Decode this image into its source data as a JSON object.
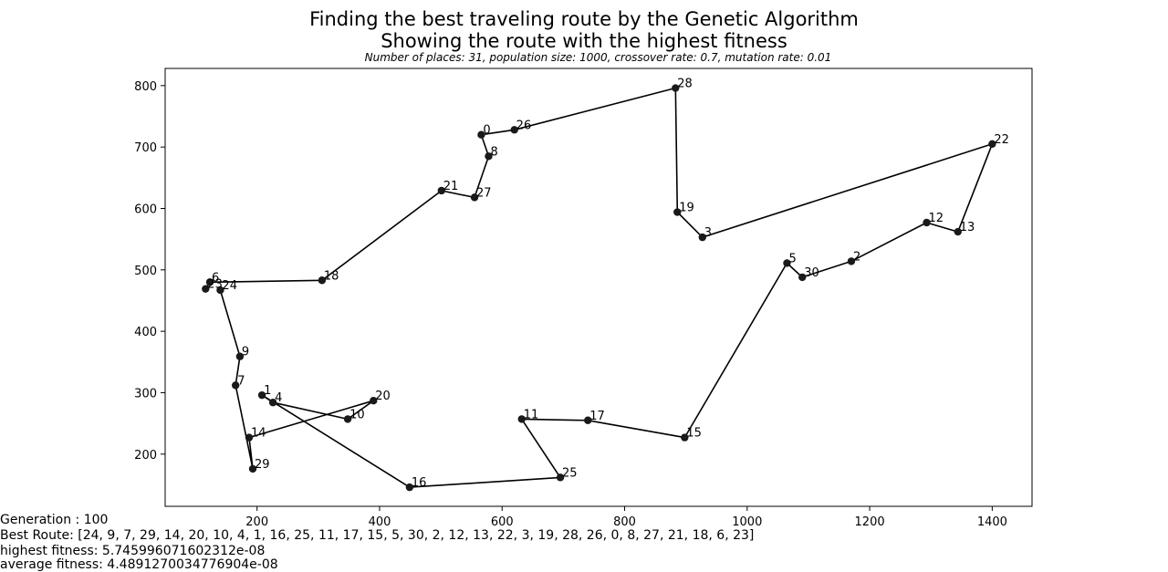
{
  "title": {
    "line1": "Finding the best traveling route by the Genetic Algorithm",
    "line2": "Showing the route with the highest fitness",
    "subtitle": "Number of places: 31, population size: 1000, crossover rate: 0.7, mutation rate: 0.01"
  },
  "footer": {
    "generation": "Generation : 100",
    "best_route": "Best Route: [24, 9, 7, 29, 14, 20, 10, 4, 1, 16, 25, 11, 17, 15, 5, 30, 2, 12, 13, 22, 3, 19, 28, 26, 0, 8, 27, 21, 18, 6, 23]",
    "highest_fitness": "highest fitness: 5.745996071602312e-08",
    "average_fitness": "average fitness: 4.4891270034776904e-08"
  },
  "chart_data": {
    "type": "line",
    "xlim": [
      50,
      1465
    ],
    "ylim": [
      115,
      828
    ],
    "xticks": [
      200,
      400,
      600,
      800,
      1000,
      1200,
      1400
    ],
    "yticks": [
      200,
      300,
      400,
      500,
      600,
      700,
      800
    ],
    "grid": false,
    "line_color": "#000000",
    "marker_color": "#1a1a1a",
    "points": [
      {
        "label": "0",
        "x": 566,
        "y": 720
      },
      {
        "label": "1",
        "x": 208,
        "y": 296
      },
      {
        "label": "2",
        "x": 1170,
        "y": 514
      },
      {
        "label": "3",
        "x": 927,
        "y": 553
      },
      {
        "label": "4",
        "x": 226,
        "y": 284
      },
      {
        "label": "5",
        "x": 1065,
        "y": 511
      },
      {
        "label": "6",
        "x": 123,
        "y": 480
      },
      {
        "label": "7",
        "x": 165,
        "y": 312
      },
      {
        "label": "8",
        "x": 578,
        "y": 685
      },
      {
        "label": "9",
        "x": 172,
        "y": 359
      },
      {
        "label": "10",
        "x": 348,
        "y": 257
      },
      {
        "label": "11",
        "x": 632,
        "y": 257
      },
      {
        "label": "12",
        "x": 1293,
        "y": 577
      },
      {
        "label": "13",
        "x": 1344,
        "y": 562
      },
      {
        "label": "14",
        "x": 187,
        "y": 227
      },
      {
        "label": "15",
        "x": 898,
        "y": 227
      },
      {
        "label": "16",
        "x": 449,
        "y": 146
      },
      {
        "label": "17",
        "x": 740,
        "y": 255
      },
      {
        "label": "18",
        "x": 306,
        "y": 483
      },
      {
        "label": "19",
        "x": 886,
        "y": 594
      },
      {
        "label": "20",
        "x": 390,
        "y": 287
      },
      {
        "label": "21",
        "x": 501,
        "y": 629
      },
      {
        "label": "22",
        "x": 1400,
        "y": 705
      },
      {
        "label": "23",
        "x": 116,
        "y": 469
      },
      {
        "label": "24",
        "x": 140,
        "y": 467
      },
      {
        "label": "25",
        "x": 695,
        "y": 162
      },
      {
        "label": "26",
        "x": 620,
        "y": 728
      },
      {
        "label": "27",
        "x": 555,
        "y": 618
      },
      {
        "label": "28",
        "x": 883,
        "y": 796
      },
      {
        "label": "29",
        "x": 193,
        "y": 176
      },
      {
        "label": "30",
        "x": 1090,
        "y": 488
      }
    ],
    "route": [
      24,
      9,
      7,
      29,
      14,
      20,
      10,
      4,
      1,
      16,
      25,
      11,
      17,
      15,
      5,
      30,
      2,
      12,
      13,
      22,
      3,
      19,
      28,
      26,
      0,
      8,
      27,
      21,
      18,
      6,
      23
    ]
  }
}
